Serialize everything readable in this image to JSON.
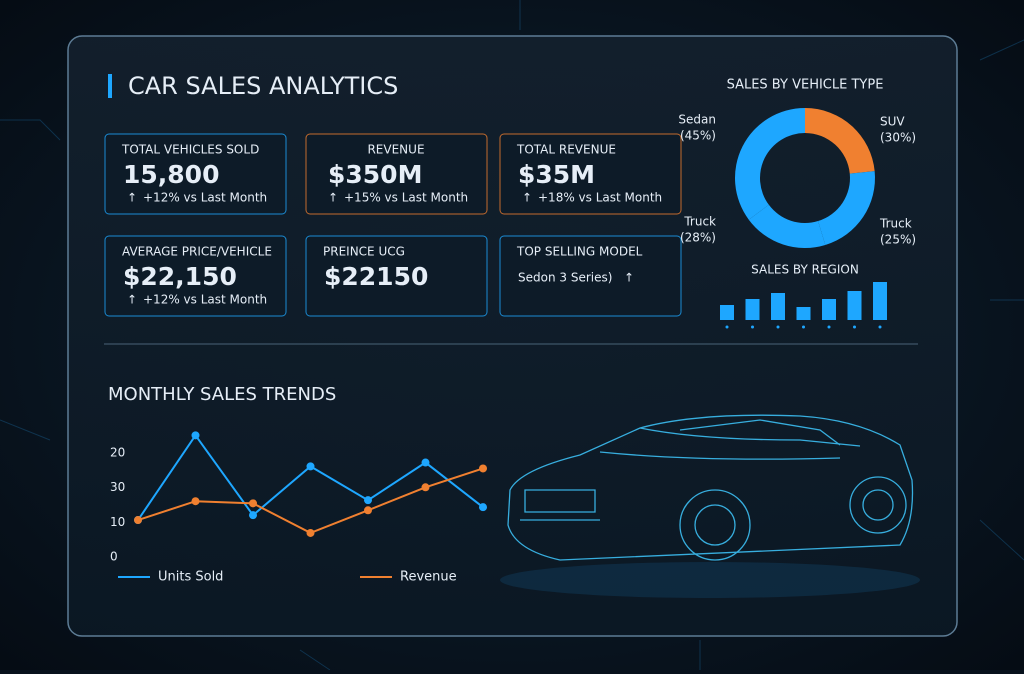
{
  "header": {
    "title": "CAR SALES ANALYTICS"
  },
  "kpis": [
    {
      "label": "TOTAL VEHICLES SOLD",
      "value": "15,800",
      "change": "+12% vs Last Month",
      "accent": "#1ea7ff"
    },
    {
      "label": "REVENUE",
      "value": "$350M",
      "change": "+15% vs Last Month",
      "accent": "#f08030"
    },
    {
      "label": "TOTAL REVENUE",
      "value": "$35M",
      "change": "+18% vs Last Month",
      "accent": "#f08030"
    },
    {
      "label": "AVERAGE PRICE/VEHICLE",
      "value": "$22,150",
      "change": "+12% vs Last Month",
      "accent": "#1ea7ff"
    },
    {
      "label": "PREINCE UCG",
      "value": "$22150",
      "accent": "#1ea7ff"
    },
    {
      "label": "TOP SELLING MODEL",
      "value": "Sedon 3 Series)",
      "accent": "#1ea7ff"
    }
  ],
  "donut": {
    "type": "pie",
    "title": "SALES BY VEHICLE TYPE",
    "segments": [
      {
        "name": "Sedan",
        "label": "(45%)",
        "value": 45,
        "color": "#1ea7ff"
      },
      {
        "name": "SUV",
        "label": "(30%)",
        "value": 30,
        "color": "#f08030"
      },
      {
        "name": "Truck",
        "label": "(28%)",
        "value": 28,
        "color": "#1ea7ff"
      },
      {
        "name": "Truck",
        "label": "(25%)",
        "value": 25,
        "color": "#1ea7ff"
      }
    ]
  },
  "region": {
    "type": "bar",
    "title": "SALES BY REGION",
    "values": [
      15,
      21,
      27,
      13,
      21,
      29,
      38
    ],
    "color": "#1ea7ff",
    "ylim": [
      0,
      40
    ]
  },
  "trend": {
    "type": "line",
    "title": "MONTHLY SALES TRENDS",
    "y_axis_labels": [
      "20",
      "30",
      "10",
      "0"
    ],
    "ylim": [
      0,
      35
    ],
    "series": [
      {
        "name": "Units Sold",
        "color": "#1ea7ff",
        "values": [
          10.6,
          34.9,
          12,
          26,
          16.3,
          27.1,
          14.3
        ]
      },
      {
        "name": "Revenue",
        "color": "#f08030",
        "values": [
          10.6,
          16,
          15.4,
          6.9,
          13.4,
          20,
          25.4
        ]
      }
    ]
  }
}
